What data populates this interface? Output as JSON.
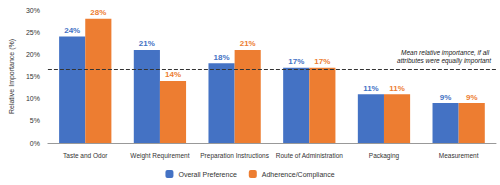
{
  "chart_data": {
    "type": "bar",
    "ylabel": "Relative Importance (%)",
    "categories": [
      "Taste and Odor",
      "Weight Requirement",
      "Preparation Instructions",
      "Route of Administration",
      "Packaging",
      "Measurement"
    ],
    "series": [
      {
        "name": "Overall Preference",
        "color": "#4472c4",
        "values": [
          24,
          21,
          18,
          17,
          11,
          9
        ],
        "value_labels": [
          "24%",
          "21%",
          "18%",
          "17%",
          "11%",
          "9%"
        ]
      },
      {
        "name": "Adherence/Compliance",
        "color": "#ed7d31",
        "values": [
          28,
          14,
          21,
          17,
          11,
          9
        ],
        "value_labels": [
          "28%",
          "14%",
          "21%",
          "17%",
          "11%",
          "9%"
        ]
      }
    ],
    "ylim": [
      0,
      30
    ],
    "yticks": [
      {
        "value": 0,
        "label": "0%"
      },
      {
        "value": 5,
        "label": "5%"
      },
      {
        "value": 10,
        "label": "10%"
      },
      {
        "value": 15,
        "label": "15%"
      },
      {
        "value": 20,
        "label": "20%"
      },
      {
        "value": 25,
        "label": "25%"
      },
      {
        "value": 30,
        "label": "30%"
      }
    ],
    "annotations": [
      {
        "text": "Mean relative importance, if all attributes were equally important",
        "y": 16.67,
        "line_style": "dashed"
      }
    ],
    "grid": false,
    "legend": "bottom",
    "data_labels": true
  }
}
